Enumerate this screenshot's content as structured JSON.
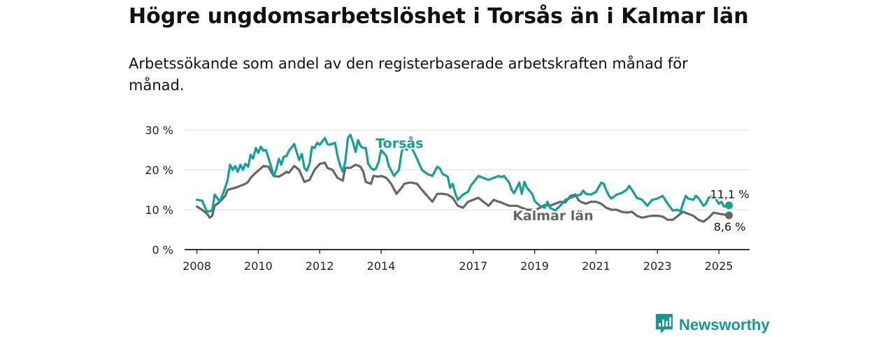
{
  "header": {
    "title": "Högre ungdomsarbetslöshet i Torsås än i Kalmar län",
    "subtitle": "Arbetssökande som andel av den registerbaserade arbetskraften månad för månad."
  },
  "brand": {
    "name": "Newsworthy",
    "icon": "newsworthy-logo-icon",
    "color": "#15998c"
  },
  "chart_data": {
    "type": "line",
    "title": "Högre ungdomsarbetslöshet i Torsås än i Kalmar län",
    "xlabel": "",
    "ylabel": "",
    "ylim": [
      0,
      30
    ],
    "xlim": [
      2007.6,
      2026.0
    ],
    "grid": true,
    "y_ticks": [
      0,
      10,
      20,
      30
    ],
    "y_tick_labels": [
      "0 %",
      "10 %",
      "20 %",
      "30 %"
    ],
    "x_ticks": [
      2008,
      2010,
      2012,
      2014,
      2017,
      2019,
      2021,
      2023,
      2025
    ],
    "x_tick_labels": [
      "2008",
      "2010",
      "2012",
      "2014",
      "2017",
      "2019",
      "2021",
      "2023",
      "2025"
    ],
    "series": [
      {
        "name": "Torsås",
        "color": "#14a096",
        "end_label": "11,1 %",
        "points": [
          [
            2008.0,
            12.5
          ],
          [
            2008.17,
            12.3
          ],
          [
            2008.33,
            9.5
          ],
          [
            2008.5,
            9.8
          ],
          [
            2008.58,
            13.8
          ],
          [
            2008.75,
            12.0
          ],
          [
            2008.92,
            15.5
          ],
          [
            2009.0,
            17.5
          ],
          [
            2009.08,
            21.3
          ],
          [
            2009.17,
            20.0
          ],
          [
            2009.25,
            21.0
          ],
          [
            2009.33,
            19.5
          ],
          [
            2009.42,
            21.3
          ],
          [
            2009.5,
            20.0
          ],
          [
            2009.58,
            21.5
          ],
          [
            2009.67,
            20.8
          ],
          [
            2009.75,
            23.8
          ],
          [
            2009.83,
            22.8
          ],
          [
            2009.92,
            25.5
          ],
          [
            2010.0,
            24.3
          ],
          [
            2010.08,
            25.8
          ],
          [
            2010.17,
            24.8
          ],
          [
            2010.25,
            25.0
          ],
          [
            2010.33,
            23.0
          ],
          [
            2010.42,
            20.8
          ],
          [
            2010.5,
            18.5
          ],
          [
            2010.58,
            20.0
          ],
          [
            2010.67,
            22.8
          ],
          [
            2010.75,
            21.3
          ],
          [
            2010.83,
            23.3
          ],
          [
            2010.92,
            23.5
          ],
          [
            2011.0,
            24.8
          ],
          [
            2011.17,
            26.5
          ],
          [
            2011.33,
            22.5
          ],
          [
            2011.42,
            24.0
          ],
          [
            2011.5,
            20.5
          ],
          [
            2011.58,
            19.8
          ],
          [
            2011.67,
            21.5
          ],
          [
            2011.75,
            25.8
          ],
          [
            2011.83,
            25.5
          ],
          [
            2011.92,
            26.8
          ],
          [
            2012.0,
            26.3
          ],
          [
            2012.17,
            28.0
          ],
          [
            2012.25,
            26.5
          ],
          [
            2012.33,
            26.3
          ],
          [
            2012.5,
            26.8
          ],
          [
            2012.58,
            23.5
          ],
          [
            2012.67,
            21.0
          ],
          [
            2012.75,
            19.5
          ],
          [
            2012.83,
            22.0
          ],
          [
            2012.92,
            28.0
          ],
          [
            2013.0,
            28.8
          ],
          [
            2013.08,
            27.0
          ],
          [
            2013.17,
            24.5
          ],
          [
            2013.25,
            27.5
          ],
          [
            2013.33,
            26.0
          ],
          [
            2013.42,
            25.5
          ],
          [
            2013.5,
            25.5
          ],
          [
            2013.58,
            21.5
          ],
          [
            2013.67,
            20.5
          ],
          [
            2013.75,
            20.0
          ],
          [
            2013.83,
            20.3
          ],
          [
            2013.92,
            22.0
          ],
          [
            2014.0,
            25.0
          ],
          [
            2014.17,
            23.5
          ],
          [
            2014.25,
            21.0
          ],
          [
            2014.42,
            18.5
          ],
          [
            2014.58,
            20.0
          ],
          [
            2014.67,
            24.5
          ],
          [
            2014.75,
            26.0
          ],
          [
            2014.83,
            25.0
          ],
          [
            2014.92,
            26.0
          ],
          [
            2015.0,
            25.5
          ],
          [
            2015.17,
            22.8
          ],
          [
            2015.33,
            20.0
          ],
          [
            2015.5,
            19.0
          ],
          [
            2015.67,
            18.5
          ],
          [
            2015.83,
            20.8
          ],
          [
            2015.92,
            20.3
          ],
          [
            2016.0,
            19.0
          ],
          [
            2016.17,
            18.3
          ],
          [
            2016.25,
            15.5
          ],
          [
            2016.33,
            16.5
          ],
          [
            2016.42,
            14.0
          ],
          [
            2016.5,
            12.5
          ],
          [
            2016.67,
            13.8
          ],
          [
            2016.83,
            14.5
          ],
          [
            2016.92,
            16.0
          ],
          [
            2017.0,
            16.8
          ],
          [
            2017.17,
            18.5
          ],
          [
            2017.33,
            18.0
          ],
          [
            2017.5,
            17.5
          ],
          [
            2017.67,
            18.0
          ],
          [
            2017.83,
            18.5
          ],
          [
            2017.92,
            18.2
          ],
          [
            2018.0,
            18.5
          ],
          [
            2018.17,
            16.8
          ],
          [
            2018.25,
            15.0
          ],
          [
            2018.33,
            14.2
          ],
          [
            2018.42,
            15.5
          ],
          [
            2018.5,
            16.8
          ],
          [
            2018.58,
            14.0
          ],
          [
            2018.67,
            17.0
          ],
          [
            2018.75,
            15.5
          ],
          [
            2018.92,
            14.0
          ],
          [
            2019.0,
            12.2
          ],
          [
            2019.17,
            11.0
          ],
          [
            2019.33,
            10.5
          ],
          [
            2019.42,
            12.0
          ],
          [
            2019.5,
            10.5
          ],
          [
            2019.67,
            9.8
          ],
          [
            2019.83,
            11.0
          ],
          [
            2020.0,
            12.5
          ],
          [
            2020.17,
            13.0
          ],
          [
            2020.33,
            13.5
          ],
          [
            2020.5,
            13.8
          ],
          [
            2020.58,
            14.8
          ],
          [
            2020.67,
            14.0
          ],
          [
            2020.83,
            13.8
          ],
          [
            2021.0,
            14.5
          ],
          [
            2021.17,
            16.8
          ],
          [
            2021.25,
            16.5
          ],
          [
            2021.33,
            15.0
          ],
          [
            2021.42,
            13.5
          ],
          [
            2021.5,
            12.8
          ],
          [
            2021.67,
            13.8
          ],
          [
            2021.83,
            14.2
          ],
          [
            2022.0,
            15.0
          ],
          [
            2022.08,
            16.0
          ],
          [
            2022.17,
            15.0
          ],
          [
            2022.33,
            13.0
          ],
          [
            2022.5,
            12.5
          ],
          [
            2022.67,
            11.0
          ],
          [
            2022.83,
            12.5
          ],
          [
            2023.0,
            12.8
          ],
          [
            2023.17,
            13.5
          ],
          [
            2023.33,
            11.5
          ],
          [
            2023.5,
            9.8
          ],
          [
            2023.67,
            10.0
          ],
          [
            2023.75,
            9.5
          ],
          [
            2023.83,
            11.5
          ],
          [
            2023.92,
            13.5
          ],
          [
            2024.0,
            12.8
          ],
          [
            2024.17,
            12.5
          ],
          [
            2024.25,
            13.5
          ],
          [
            2024.33,
            13.0
          ],
          [
            2024.5,
            11.0
          ],
          [
            2024.58,
            11.5
          ],
          [
            2024.67,
            13.0
          ],
          [
            2024.83,
            13.5
          ],
          [
            2025.0,
            11.5
          ],
          [
            2025.08,
            12.0
          ],
          [
            2025.17,
            10.8
          ],
          [
            2025.25,
            11.0
          ],
          [
            2025.33,
            11.1
          ]
        ]
      },
      {
        "name": "Kalmar län",
        "color": "#666666",
        "end_label": "8,6 %",
        "points": [
          [
            2008.0,
            10.8
          ],
          [
            2008.17,
            10.0
          ],
          [
            2008.33,
            9.0
          ],
          [
            2008.42,
            8.0
          ],
          [
            2008.5,
            8.5
          ],
          [
            2008.58,
            11.0
          ],
          [
            2008.75,
            12.0
          ],
          [
            2008.92,
            13.5
          ],
          [
            2009.0,
            15.0
          ],
          [
            2009.25,
            15.5
          ],
          [
            2009.42,
            16.0
          ],
          [
            2009.58,
            16.5
          ],
          [
            2009.67,
            17.0
          ],
          [
            2009.75,
            18.0
          ],
          [
            2009.92,
            19.3
          ],
          [
            2010.0,
            19.8
          ],
          [
            2010.17,
            21.0
          ],
          [
            2010.33,
            20.8
          ],
          [
            2010.42,
            19.5
          ],
          [
            2010.5,
            18.5
          ],
          [
            2010.67,
            18.3
          ],
          [
            2010.83,
            19.0
          ],
          [
            2010.92,
            19.5
          ],
          [
            2011.0,
            19.3
          ],
          [
            2011.17,
            21.0
          ],
          [
            2011.33,
            20.0
          ],
          [
            2011.5,
            17.0
          ],
          [
            2011.67,
            17.5
          ],
          [
            2011.83,
            20.0
          ],
          [
            2012.0,
            21.5
          ],
          [
            2012.17,
            21.8
          ],
          [
            2012.25,
            20.5
          ],
          [
            2012.42,
            20.0
          ],
          [
            2012.58,
            18.0
          ],
          [
            2012.75,
            17.3
          ],
          [
            2012.83,
            20.5
          ],
          [
            2013.0,
            20.5
          ],
          [
            2013.17,
            21.3
          ],
          [
            2013.33,
            20.8
          ],
          [
            2013.42,
            19.5
          ],
          [
            2013.5,
            17.0
          ],
          [
            2013.67,
            16.5
          ],
          [
            2013.75,
            18.5
          ],
          [
            2013.92,
            18.3
          ],
          [
            2014.0,
            18.5
          ],
          [
            2014.17,
            18.0
          ],
          [
            2014.33,
            16.5
          ],
          [
            2014.5,
            14.0
          ],
          [
            2014.67,
            15.5
          ],
          [
            2014.75,
            16.5
          ],
          [
            2014.92,
            16.8
          ],
          [
            2015.0,
            16.8
          ],
          [
            2015.17,
            16.5
          ],
          [
            2015.33,
            15.0
          ],
          [
            2015.5,
            13.5
          ],
          [
            2015.67,
            12.0
          ],
          [
            2015.83,
            14.0
          ],
          [
            2016.0,
            14.0
          ],
          [
            2016.17,
            13.8
          ],
          [
            2016.33,
            13.0
          ],
          [
            2016.5,
            11.0
          ],
          [
            2016.67,
            10.5
          ],
          [
            2016.83,
            12.0
          ],
          [
            2017.0,
            12.5
          ],
          [
            2017.17,
            13.0
          ],
          [
            2017.33,
            12.0
          ],
          [
            2017.5,
            11.0
          ],
          [
            2017.67,
            12.5
          ],
          [
            2017.83,
            12.0
          ],
          [
            2017.92,
            11.8
          ],
          [
            2018.0,
            11.5
          ],
          [
            2018.17,
            11.0
          ],
          [
            2018.42,
            11.0
          ],
          [
            2018.58,
            10.5
          ],
          [
            2018.75,
            10.0
          ],
          [
            2018.92,
            10.0
          ],
          [
            2019.0,
            9.8
          ],
          [
            2019.17,
            10.5
          ],
          [
            2019.33,
            11.2
          ],
          [
            2019.5,
            11.0
          ],
          [
            2019.67,
            11.5
          ],
          [
            2019.83,
            12.0
          ],
          [
            2020.0,
            11.8
          ],
          [
            2020.17,
            13.5
          ],
          [
            2020.33,
            13.8
          ],
          [
            2020.42,
            12.5
          ],
          [
            2020.5,
            12.0
          ],
          [
            2020.67,
            11.5
          ],
          [
            2020.83,
            12.0
          ],
          [
            2021.0,
            12.0
          ],
          [
            2021.17,
            11.5
          ],
          [
            2021.33,
            10.5
          ],
          [
            2021.5,
            10.0
          ],
          [
            2021.67,
            10.0
          ],
          [
            2021.83,
            9.5
          ],
          [
            2022.0,
            9.3
          ],
          [
            2022.17,
            9.5
          ],
          [
            2022.33,
            8.5
          ],
          [
            2022.5,
            8.0
          ],
          [
            2022.67,
            8.3
          ],
          [
            2022.83,
            8.5
          ],
          [
            2023.0,
            8.5
          ],
          [
            2023.17,
            8.3
          ],
          [
            2023.33,
            7.5
          ],
          [
            2023.5,
            7.5
          ],
          [
            2023.67,
            8.5
          ],
          [
            2023.83,
            9.5
          ],
          [
            2024.0,
            9.0
          ],
          [
            2024.17,
            8.5
          ],
          [
            2024.33,
            7.5
          ],
          [
            2024.5,
            7.0
          ],
          [
            2024.67,
            8.0
          ],
          [
            2024.83,
            9.3
          ],
          [
            2025.0,
            9.0
          ],
          [
            2025.17,
            8.8
          ],
          [
            2025.33,
            8.6
          ]
        ]
      }
    ]
  }
}
